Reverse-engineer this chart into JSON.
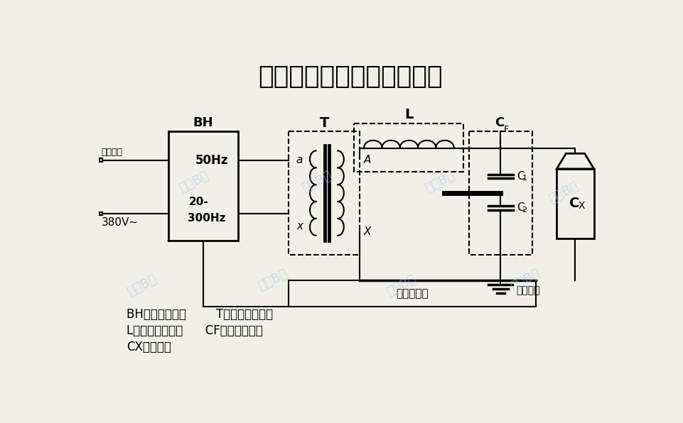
{
  "title": "发电机交流耐压试验原理图",
  "bg_color": "#f0f0e8",
  "line_color": "#000000",
  "watermark_color": "#b0c8e8",
  "legend_line1": "BH：变频电源；        T：励磁变压器；",
  "legend_line2": "L：电抗器组合；      CF：电容分压器",
  "legend_line3": "CX：被试品",
  "input_label1": "系统输入",
  "input_label2": "380V~",
  "bh_label": "BH",
  "bh_text1": "50Hz",
  "bh_text2": "20-",
  "bh_text3": "300Hz",
  "T_label": "T",
  "L_label": "L",
  "A_label": "A",
  "X_label": "X",
  "a_label": "a",
  "x_label": "x",
  "sample_label": "采样信号线",
  "ground_label": "系统接地"
}
